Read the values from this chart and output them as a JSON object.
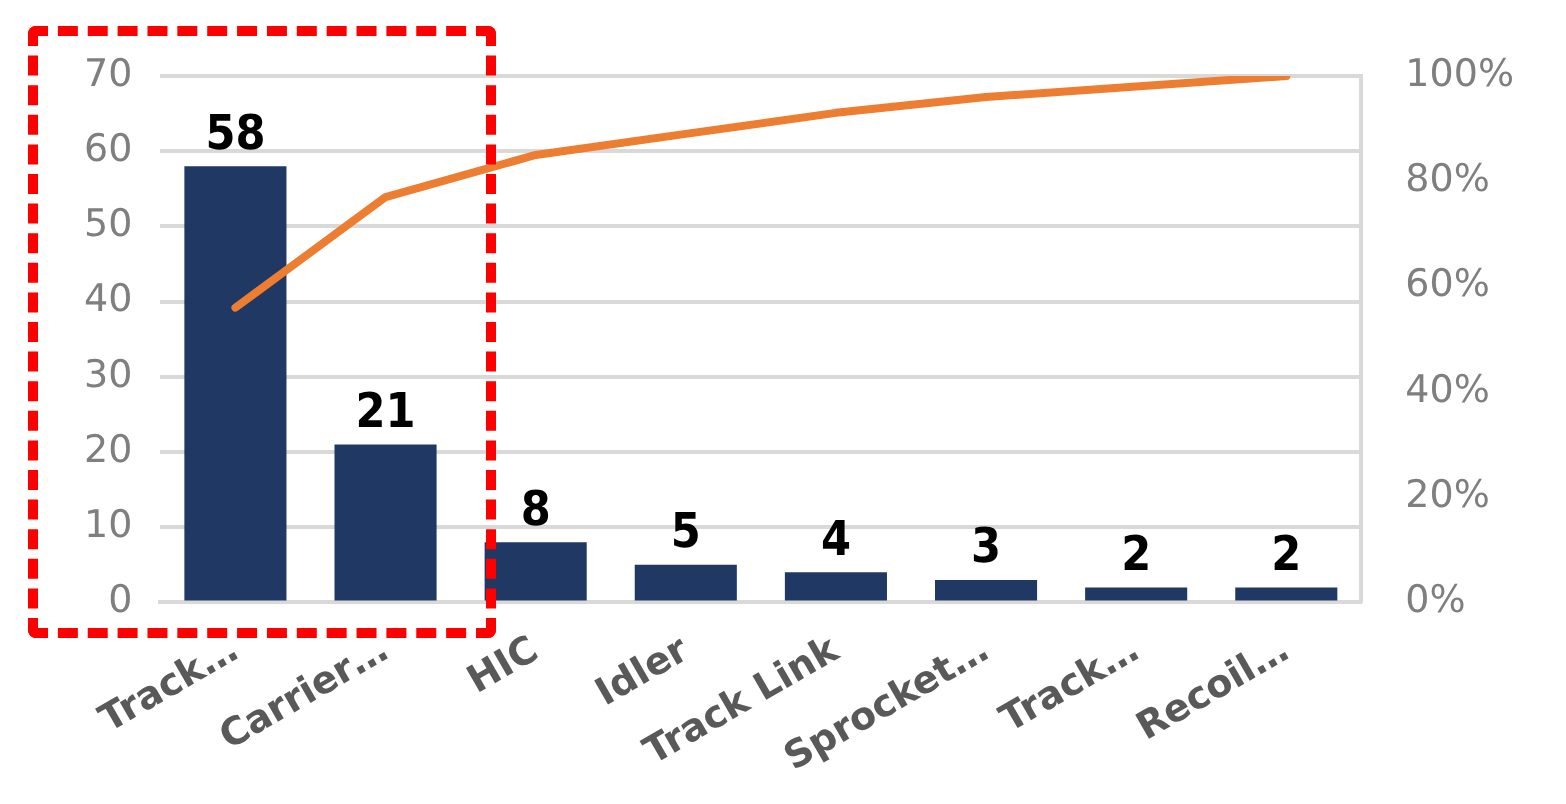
{
  "chart_data": {
    "type": "bar",
    "categories": [
      "Track…",
      "Carrier…",
      "HIC",
      "Idler",
      "Track Link",
      "Sprocket…",
      "Track…",
      "Recoil…"
    ],
    "series": [
      {
        "color": "#1f3864",
        "values": [
          58,
          21,
          8,
          5,
          4,
          3,
          2,
          2
        ],
        "value_labels": [
          "58",
          "21",
          "8",
          "5",
          "4",
          "3",
          "2",
          "2"
        ]
      },
      {
        "type": "line",
        "color": "#ed7d31",
        "axis": "y2",
        "values": [
          56,
          77,
          85,
          89,
          93,
          96,
          98,
          100
        ]
      }
    ],
    "ylim": [
      0,
      70
    ],
    "yticks": [
      0,
      10,
      20,
      30,
      40,
      50,
      60,
      70
    ],
    "y2lim": [
      0,
      100
    ],
    "y2ticks": [
      {
        "value": 0,
        "label": "0%"
      },
      {
        "value": 20,
        "label": "20%"
      },
      {
        "value": 40,
        "label": "40%"
      },
      {
        "value": 60,
        "label": "60%"
      },
      {
        "value": 80,
        "label": "80%"
      },
      {
        "value": 100,
        "label": "100%"
      }
    ],
    "grid": "y",
    "legend": false,
    "marker": "none",
    "line_style": "solid"
  }
}
